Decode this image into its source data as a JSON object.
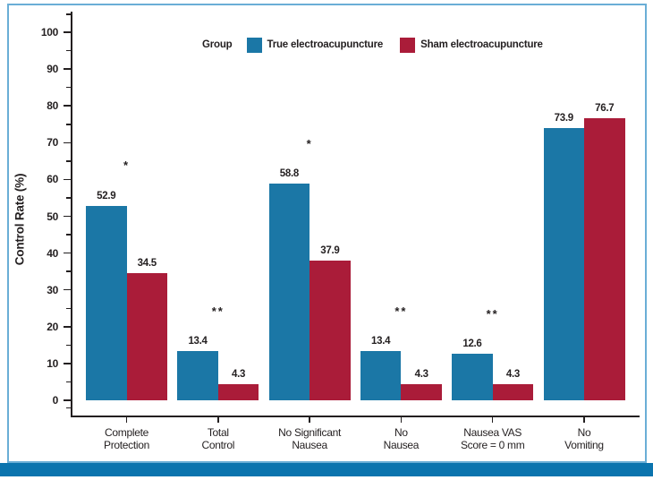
{
  "frame": {
    "border_color": "#6aaed6",
    "footer_bar_color": "#0b74ae",
    "axis_color": "#231f20",
    "background": "#ffffff"
  },
  "chart_data": {
    "type": "bar",
    "title": "",
    "ylabel": "Control Rate (%)",
    "xlabel": "",
    "ylim": [
      0,
      100
    ],
    "ytick_step_major": 10,
    "ytick_step_minor": 5,
    "grid": false,
    "legend_title": "Group",
    "legend_position": "top",
    "categories": [
      "Complete\nProtection",
      "Total\nControl",
      "No Significant\nNausea",
      "No\nNausea",
      "Nausea VAS\nScore = 0 mm",
      "No\nVomiting"
    ],
    "series": [
      {
        "name": "True electroacupuncture",
        "color": "#1b77a6",
        "values": [
          52.9,
          13.4,
          58.8,
          13.4,
          12.6,
          73.9
        ]
      },
      {
        "name": "Sham electroacupuncture",
        "color": "#aa1c39",
        "values": [
          34.5,
          4.3,
          37.9,
          4.3,
          4.3,
          76.7
        ]
      }
    ],
    "significance_markers": [
      "*",
      "**",
      "*",
      "**",
      "**",
      ""
    ]
  }
}
